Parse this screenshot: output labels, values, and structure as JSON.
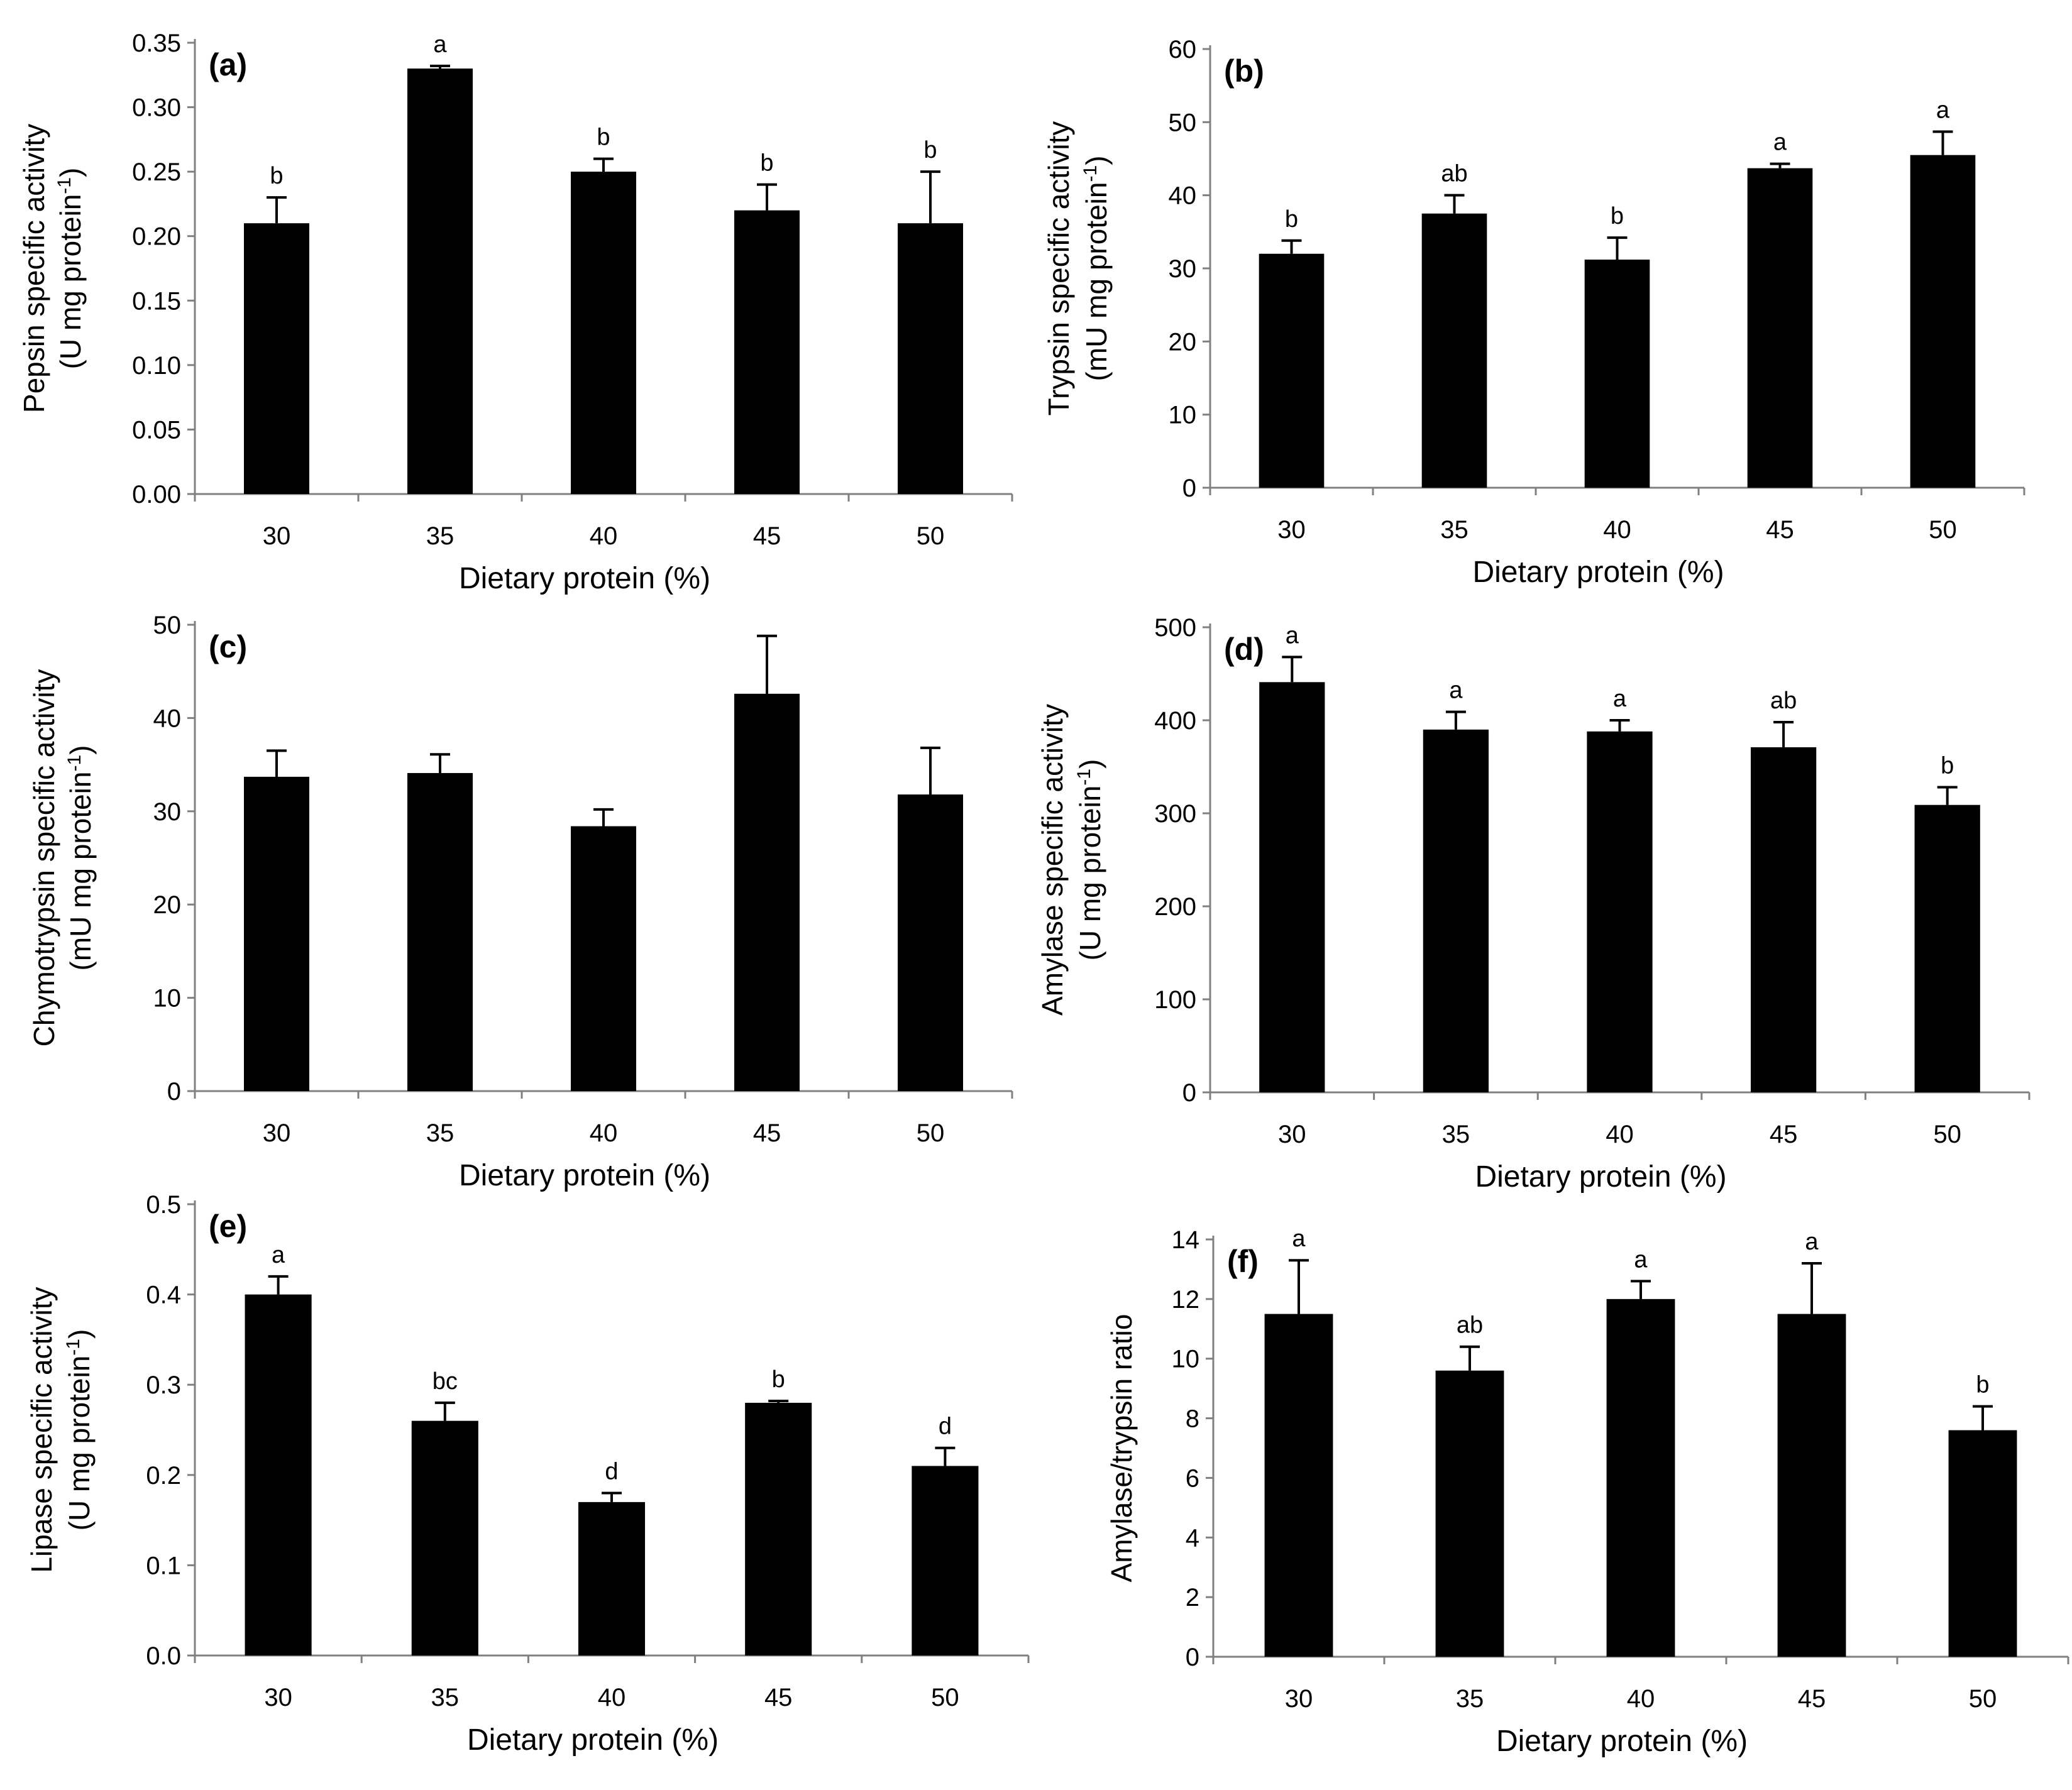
{
  "figure": {
    "colors": {
      "bar": "#000000",
      "axis": "#808080",
      "background": "#ffffff"
    }
  },
  "chart_data": [
    {
      "id": "a",
      "type": "bar",
      "panel_label": "(a)",
      "categories": [
        "30",
        "35",
        "40",
        "45",
        "50"
      ],
      "values": [
        0.21,
        0.33,
        0.25,
        0.22,
        0.21
      ],
      "errors": [
        0.02,
        0.002,
        0.01,
        0.02,
        0.04
      ],
      "sig_letters": [
        "b",
        "a",
        "b",
        "b",
        "b"
      ],
      "xlabel": "Dietary protein (%)",
      "ylabel_lines": [
        "Pepsin specific activity",
        "(U mg protein",
        "-1",
        ")"
      ],
      "ylim": [
        0,
        0.35
      ],
      "yticks": [
        0,
        0.05,
        0.1,
        0.15,
        0.2,
        0.25,
        0.3,
        0.35
      ],
      "ytick_labels": [
        "0.00",
        "0.05",
        "0.10",
        "0.15",
        "0.20",
        "0.25",
        "0.30",
        "0.35"
      ]
    },
    {
      "id": "b",
      "type": "bar",
      "panel_label": "(b)",
      "categories": [
        "30",
        "35",
        "40",
        "45",
        "50"
      ],
      "values": [
        32,
        37.5,
        31.2,
        43.7,
        45.5
      ],
      "errors": [
        1.8,
        2.5,
        3.0,
        0.6,
        3.2
      ],
      "sig_letters": [
        "b",
        "ab",
        "b",
        "a",
        "a"
      ],
      "xlabel": "Dietary protein (%)",
      "ylabel_lines": [
        "Trypsin specific activity",
        "(mU mg protein",
        "-1",
        ")"
      ],
      "ylim": [
        0,
        60
      ],
      "yticks": [
        0,
        10,
        20,
        30,
        40,
        50,
        60
      ],
      "ytick_labels": [
        "0",
        "10",
        "20",
        "30",
        "40",
        "50",
        "60"
      ]
    },
    {
      "id": "c",
      "type": "bar",
      "panel_label": "(c)",
      "categories": [
        "30",
        "35",
        "40",
        "45",
        "50"
      ],
      "values": [
        33.7,
        34.1,
        28.4,
        42.6,
        31.8
      ],
      "errors": [
        2.8,
        2.0,
        1.8,
        6.2,
        5.0
      ],
      "sig_letters": [
        "",
        "",
        "",
        "",
        ""
      ],
      "xlabel": "Dietary protein (%)",
      "ylabel_lines": [
        "Chymotrypsin specific activity",
        "(mU mg protein",
        "-1",
        ")"
      ],
      "ylim": [
        0,
        50
      ],
      "yticks": [
        0,
        10,
        20,
        30,
        40,
        50
      ],
      "ytick_labels": [
        "0",
        "10",
        "20",
        "30",
        "40",
        "50"
      ]
    },
    {
      "id": "d",
      "type": "bar",
      "panel_label": "(d)",
      "categories": [
        "30",
        "35",
        "40",
        "45",
        "50"
      ],
      "values": [
        441,
        390,
        388,
        371,
        309
      ],
      "errors": [
        27,
        19,
        12,
        27,
        19
      ],
      "sig_letters": [
        "a",
        "a",
        "a",
        "ab",
        "b"
      ],
      "xlabel": "Dietary protein (%)",
      "ylabel_lines": [
        "Amylase specific activity",
        "(U mg protein",
        "-1",
        ")"
      ],
      "ylim": [
        0,
        500
      ],
      "yticks": [
        0,
        100,
        200,
        300,
        400,
        500
      ],
      "ytick_labels": [
        "0",
        "100",
        "200",
        "300",
        "400",
        "500"
      ]
    },
    {
      "id": "e",
      "type": "bar",
      "panel_label": "(e)",
      "categories": [
        "30",
        "35",
        "40",
        "45",
        "50"
      ],
      "values": [
        0.4,
        0.26,
        0.17,
        0.28,
        0.21
      ],
      "errors": [
        0.02,
        0.02,
        0.01,
        0.002,
        0.02
      ],
      "sig_letters": [
        "a",
        "bc",
        "d",
        "b",
        "d"
      ],
      "xlabel": "Dietary protein (%)",
      "ylabel_lines": [
        "Lipase specific activity",
        "(U mg protein",
        "-1",
        ")"
      ],
      "ylim": [
        0,
        0.5
      ],
      "yticks": [
        0,
        0.1,
        0.2,
        0.3,
        0.4,
        0.5
      ],
      "ytick_labels": [
        "0.0",
        "0.1",
        "0.2",
        "0.3",
        "0.4",
        "0.5"
      ]
    },
    {
      "id": "f",
      "type": "bar",
      "panel_label": "(f)",
      "categories": [
        "30",
        "35",
        "40",
        "45",
        "50"
      ],
      "values": [
        11.5,
        9.6,
        12.0,
        11.5,
        7.6
      ],
      "errors": [
        1.8,
        0.8,
        0.6,
        1.7,
        0.8
      ],
      "sig_letters": [
        "a",
        "ab",
        "a",
        "a",
        "b"
      ],
      "xlabel": "Dietary protein (%)",
      "ylabel_lines": [
        "Amylase/trypsin ratio"
      ],
      "ylim": [
        0,
        14
      ],
      "yticks": [
        0,
        2,
        4,
        6,
        8,
        10,
        12,
        14
      ],
      "ytick_labels": [
        "0",
        "2",
        "4",
        "6",
        "8",
        "10",
        "12",
        "14"
      ]
    }
  ]
}
